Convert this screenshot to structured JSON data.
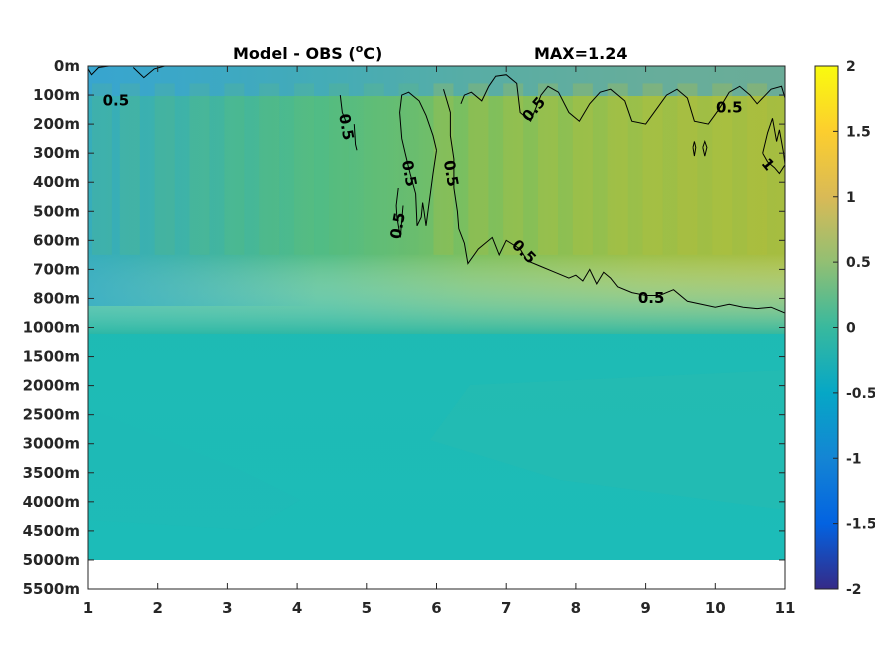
{
  "chart_data": {
    "type": "heatmap",
    "title_left": "Model - OBS (",
    "title_unit_sup": "o",
    "title_unit_tail": "C)",
    "title_right": "MAX=1.24",
    "x_ticks": [
      "1",
      "2",
      "3",
      "4",
      "5",
      "6",
      "7",
      "8",
      "9",
      "10",
      "11"
    ],
    "xlim": [
      1,
      11
    ],
    "y_ticks": [
      "0m",
      "100m",
      "200m",
      "300m",
      "400m",
      "500m",
      "600m",
      "700m",
      "800m",
      "1000m",
      "1500m",
      "2000m",
      "2500m",
      "3000m",
      "3500m",
      "4000m",
      "4500m",
      "5000m",
      "5500m"
    ],
    "colorbar": {
      "ticks": [
        "2",
        "1.5",
        "1",
        "0.5",
        "0",
        "-0.5",
        "-1",
        "-1.5",
        "-2"
      ],
      "limits": [
        -2,
        2
      ],
      "colormap": "parula"
    },
    "field_summary": {
      "upper_band_depth_index": [
        0,
        9
      ],
      "upper_band_x_range": [
        1,
        11
      ],
      "max_value": 1.24
    },
    "contour_labels": [
      {
        "text": "0.5",
        "x": 1.4,
        "y_index": 1.2,
        "angle": 0
      },
      {
        "text": "0.5",
        "x": 4.7,
        "y_index": 2.1,
        "angle": 80
      },
      {
        "text": "0.5",
        "x": 5.6,
        "y_index": 3.7,
        "angle": 80
      },
      {
        "text": "0.5",
        "x": 6.2,
        "y_index": 3.7,
        "angle": 80
      },
      {
        "text": "0.5",
        "x": 5.45,
        "y_index": 5.5,
        "angle": -80
      },
      {
        "text": "0.5",
        "x": 7.4,
        "y_index": 1.5,
        "angle": -50
      },
      {
        "text": "0.5",
        "x": 7.25,
        "y_index": 6.4,
        "angle": 45
      },
      {
        "text": "0.5",
        "x": 10.2,
        "y_index": 1.45,
        "angle": 0
      },
      {
        "text": "0.5",
        "x": 9.08,
        "y_index": 8.0,
        "angle": 0
      },
      {
        "text": "1",
        "x": 10.75,
        "y_index": 3.4,
        "angle": 50
      }
    ],
    "contour_lines": [
      [
        [
          1.0,
          0.1
        ],
        [
          1.05,
          0.3
        ],
        [
          1.15,
          0.05
        ],
        [
          1.3,
          0.0
        ]
      ],
      [
        [
          1.65,
          0.05
        ],
        [
          1.8,
          0.4
        ],
        [
          1.95,
          0.1
        ],
        [
          2.1,
          0.0
        ]
      ],
      [
        [
          4.62,
          1.0
        ],
        [
          4.65,
          1.6
        ],
        [
          4.7,
          1.9
        ]
      ],
      [
        [
          4.82,
          2.0
        ],
        [
          4.84,
          2.7
        ],
        [
          4.86,
          2.9
        ]
      ],
      [
        [
          6.0,
          2.9
        ],
        [
          5.95,
          2.4
        ],
        [
          5.85,
          1.7
        ],
        [
          5.75,
          1.2
        ],
        [
          5.6,
          0.9
        ],
        [
          5.5,
          1.0
        ],
        [
          5.47,
          1.6
        ],
        [
          5.5,
          2.5
        ],
        [
          5.55,
          3.0
        ],
        [
          5.62,
          3.7
        ],
        [
          5.7,
          4.4
        ],
        [
          5.72,
          5.5
        ],
        [
          5.78,
          5.2
        ],
        [
          5.8,
          4.7
        ],
        [
          5.82,
          5.0
        ],
        [
          5.85,
          5.5
        ],
        [
          5.9,
          4.6
        ],
        [
          5.95,
          3.7
        ],
        [
          6.0,
          2.9
        ]
      ],
      [
        [
          5.45,
          4.2
        ],
        [
          5.42,
          4.8
        ],
        [
          5.43,
          5.2
        ],
        [
          5.48,
          5.9
        ],
        [
          5.5,
          5.3
        ],
        [
          5.52,
          4.8
        ]
      ],
      [
        [
          6.1,
          0.8
        ],
        [
          6.15,
          1.2
        ],
        [
          6.2,
          1.6
        ],
        [
          6.2,
          2.4
        ],
        [
          6.25,
          3.2
        ],
        [
          6.25,
          4.2
        ],
        [
          6.3,
          5.0
        ],
        [
          6.32,
          5.6
        ],
        [
          6.4,
          6.1
        ],
        [
          6.45,
          6.8
        ],
        [
          6.6,
          6.3
        ],
        [
          6.8,
          5.9
        ],
        [
          6.9,
          6.5
        ],
        [
          7.0,
          6.0
        ],
        [
          7.2,
          6.3
        ],
        [
          7.3,
          6.7
        ],
        [
          7.5,
          6.9
        ],
        [
          7.7,
          7.1
        ],
        [
          7.9,
          7.3
        ],
        [
          8.0,
          7.2
        ],
        [
          8.1,
          7.4
        ],
        [
          8.2,
          7.0
        ],
        [
          8.3,
          7.5
        ],
        [
          8.4,
          7.1
        ],
        [
          8.5,
          7.3
        ],
        [
          8.6,
          7.6
        ],
        [
          8.8,
          7.8
        ],
        [
          9.0,
          7.9
        ],
        [
          9.2,
          7.9
        ],
        [
          9.4,
          7.7
        ],
        [
          9.6,
          8.1
        ],
        [
          9.8,
          8.2
        ],
        [
          10.0,
          8.3
        ],
        [
          10.2,
          8.2
        ],
        [
          10.4,
          8.3
        ],
        [
          10.6,
          8.35
        ],
        [
          10.8,
          8.3
        ],
        [
          11.0,
          8.5
        ]
      ],
      [
        [
          6.35,
          1.3
        ],
        [
          6.4,
          1.0
        ],
        [
          6.5,
          0.9
        ],
        [
          6.65,
          1.2
        ],
        [
          6.75,
          0.7
        ],
        [
          6.85,
          0.35
        ],
        [
          7.0,
          0.3
        ],
        [
          7.15,
          0.6
        ],
        [
          7.2,
          1.6
        ],
        [
          7.35,
          1.9
        ],
        [
          7.5,
          1.0
        ],
        [
          7.6,
          0.7
        ],
        [
          7.75,
          0.9
        ],
        [
          7.9,
          1.6
        ],
        [
          8.05,
          1.9
        ],
        [
          8.2,
          1.3
        ],
        [
          8.35,
          0.9
        ],
        [
          8.5,
          0.8
        ],
        [
          8.7,
          1.2
        ],
        [
          8.8,
          1.9
        ],
        [
          9.0,
          2.0
        ],
        [
          9.15,
          1.5
        ],
        [
          9.3,
          1.0
        ],
        [
          9.45,
          0.8
        ],
        [
          9.6,
          1.1
        ],
        [
          9.7,
          1.9
        ],
        [
          9.9,
          2.0
        ],
        [
          10.05,
          1.5
        ],
        [
          10.2,
          0.9
        ],
        [
          10.35,
          0.7
        ],
        [
          10.5,
          1.0
        ],
        [
          10.6,
          1.3
        ],
        [
          10.8,
          0.8
        ],
        [
          10.95,
          0.7
        ],
        [
          11.0,
          1.1
        ]
      ],
      [
        [
          9.68,
          2.8
        ],
        [
          9.7,
          3.1
        ],
        [
          9.72,
          2.8
        ],
        [
          9.7,
          2.6
        ],
        [
          9.68,
          2.8
        ]
      ],
      [
        [
          9.82,
          2.8
        ],
        [
          9.85,
          3.1
        ],
        [
          9.88,
          2.8
        ],
        [
          9.85,
          2.6
        ],
        [
          9.82,
          2.8
        ]
      ],
      [
        [
          10.68,
          3.0
        ],
        [
          10.75,
          2.3
        ],
        [
          10.82,
          1.8
        ],
        [
          10.88,
          2.6
        ],
        [
          10.92,
          2.2
        ],
        [
          10.98,
          3.0
        ],
        [
          11.0,
          3.4
        ],
        [
          10.92,
          3.7
        ],
        [
          10.85,
          3.5
        ],
        [
          10.75,
          3.3
        ],
        [
          10.68,
          3.0
        ]
      ]
    ]
  }
}
